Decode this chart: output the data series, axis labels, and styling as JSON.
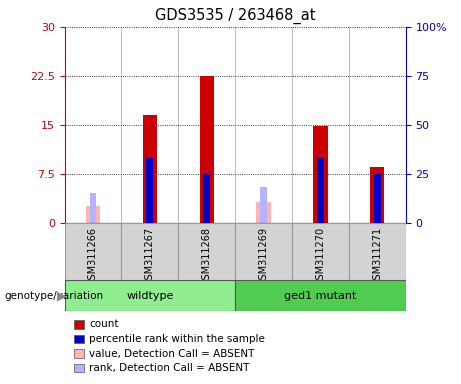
{
  "title": "GDS3535 / 263468_at",
  "samples": [
    "GSM311266",
    "GSM311267",
    "GSM311268",
    "GSM311269",
    "GSM311270",
    "GSM311271"
  ],
  "count_values": [
    null,
    16.5,
    22.5,
    null,
    14.8,
    8.5
  ],
  "rank_values": [
    null,
    33,
    25,
    null,
    33,
    25
  ],
  "absent_count_values": [
    2.5,
    null,
    null,
    3.2,
    null,
    null
  ],
  "absent_rank_values": [
    15,
    null,
    null,
    18,
    null,
    null
  ],
  "count_color": "#cc0000",
  "rank_color": "#0000cc",
  "absent_count_color": "#ffb3b3",
  "absent_rank_color": "#b3b3ff",
  "ylim_left": [
    0,
    30
  ],
  "ylim_right": [
    0,
    100
  ],
  "yticks_left": [
    0,
    7.5,
    15,
    22.5,
    30
  ],
  "yticks_right": [
    0,
    25,
    50,
    75,
    100
  ],
  "ytick_labels_left": [
    "0",
    "7.5",
    "15",
    "22.5",
    "30"
  ],
  "ytick_labels_right": [
    "0",
    "25",
    "50",
    "75",
    "100%"
  ],
  "bar_width": 0.25,
  "rank_bar_width": 0.12,
  "legend_items": [
    {
      "label": "count",
      "color": "#cc0000"
    },
    {
      "label": "percentile rank within the sample",
      "color": "#0000cc"
    },
    {
      "label": "value, Detection Call = ABSENT",
      "color": "#ffb3b3"
    },
    {
      "label": "rank, Detection Call = ABSENT",
      "color": "#b3b3ff"
    }
  ],
  "genotype_label": "genotype/variation",
  "wildtype_color": "#90ee90",
  "mutant_color": "#50cc50",
  "sample_box_color": "#d3d3d3",
  "sample_box_edge": "#999999"
}
